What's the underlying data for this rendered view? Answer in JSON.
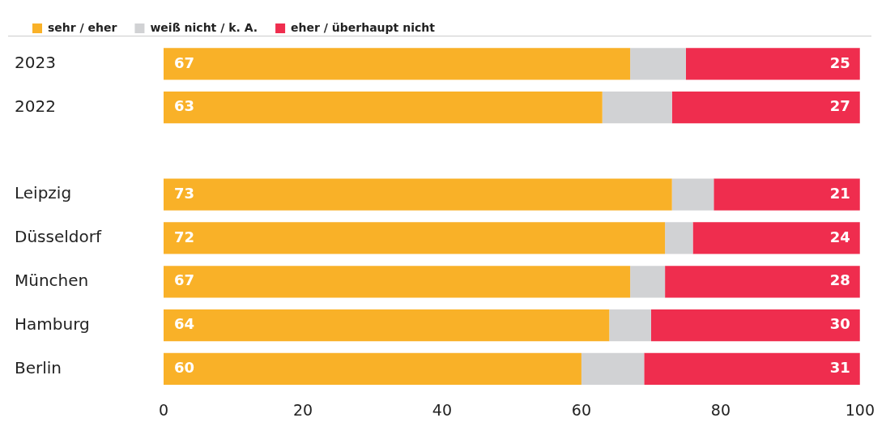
{
  "chart_data": {
    "type": "bar",
    "orientation": "horizontal",
    "stacked": true,
    "grid": false,
    "legend": "top left",
    "categories": [
      "2023",
      "2022",
      null,
      "Leipzig",
      "Düsseldorf",
      "München",
      "Hamburg",
      "Berlin"
    ],
    "series": [
      {
        "name": "sehr / eher",
        "color": "#f9b128",
        "values": [
          67,
          63,
          null,
          73,
          72,
          67,
          64,
          60
        ],
        "value_labels": [
          "67",
          "63",
          null,
          "73",
          "72",
          "67",
          "64",
          "60"
        ]
      },
      {
        "name": "weiß nicht / k. A.",
        "color": "#d1d2d4",
        "values": [
          8,
          10,
          null,
          6,
          4,
          5,
          6,
          9
        ]
      },
      {
        "name": "eher / überhaupt nicht",
        "color": "#ef2d4e",
        "values": [
          25,
          27,
          null,
          21,
          24,
          28,
          30,
          31
        ],
        "value_labels": [
          "25",
          "27",
          null,
          "21",
          "24",
          "28",
          "30",
          "31"
        ]
      }
    ],
    "xlim": [
      0,
      100
    ],
    "xticks": [
      0,
      20,
      40,
      60,
      80,
      100
    ]
  }
}
